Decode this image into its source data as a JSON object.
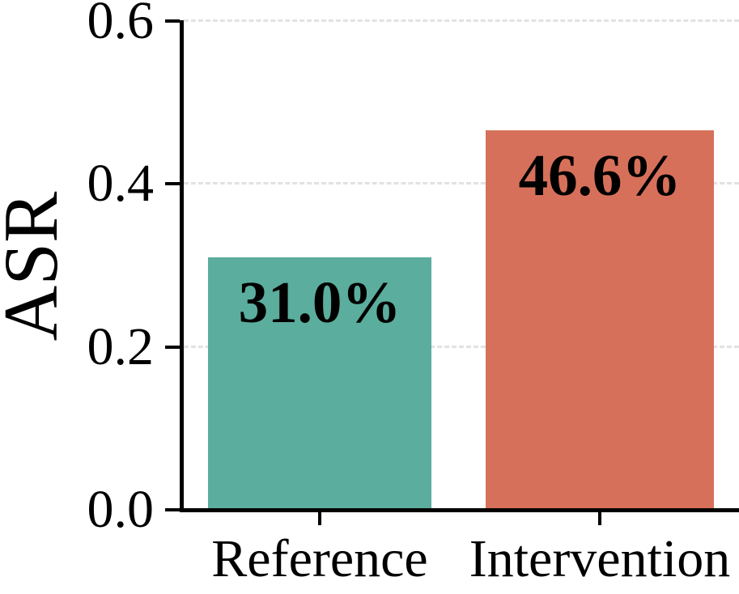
{
  "chart_data": {
    "type": "bar",
    "title": "",
    "xlabel": "",
    "ylabel": "ASR",
    "categories": [
      "Reference",
      "Intervention"
    ],
    "values": [
      0.31,
      0.466
    ],
    "bar_value_labels": [
      "31.0%",
      "46.6%"
    ],
    "bar_colors": [
      "#5BAD9D",
      "#D7705A"
    ],
    "ylim": [
      0.0,
      0.6
    ],
    "yticks": [
      0.0,
      0.2,
      0.4,
      0.6
    ],
    "ytick_labels": [
      "0.0",
      "0.2",
      "0.4",
      "0.6"
    ],
    "grid": "horizontal dashed gridlines at y ticks",
    "gridline_color": "#E2E2E2",
    "axis_color": "#000000",
    "text_color": "#000000",
    "background_color": "#FFFFFF",
    "legend_position": "none"
  }
}
